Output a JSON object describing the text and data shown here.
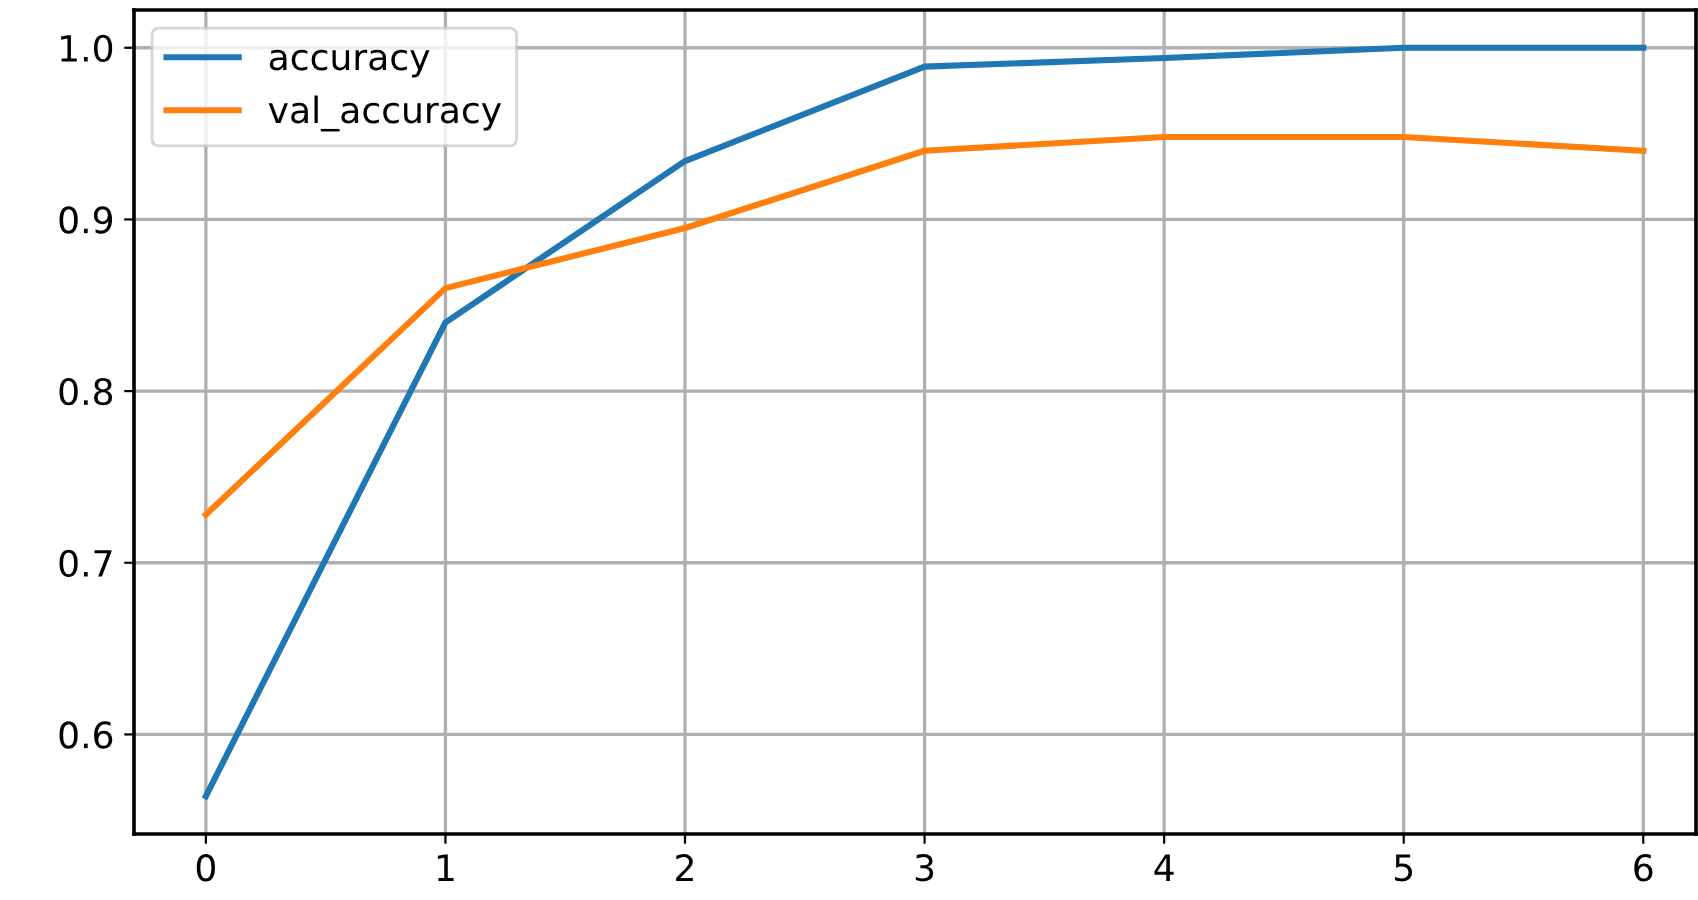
{
  "chart_data": {
    "type": "line",
    "x": [
      0,
      1,
      2,
      3,
      4,
      5,
      6
    ],
    "series": [
      {
        "name": "accuracy",
        "color": "#1f77b4",
        "values": [
          0.564,
          0.84,
          0.934,
          0.989,
          0.994,
          1.0,
          1.0
        ]
      },
      {
        "name": "val_accuracy",
        "color": "#ff7f0e",
        "values": [
          0.728,
          0.86,
          0.895,
          0.94,
          0.948,
          0.948,
          0.94
        ]
      }
    ],
    "xlim": [
      -0.3,
      6.22
    ],
    "ylim": [
      0.542,
      1.022
    ],
    "xticks": [
      0,
      1,
      2,
      3,
      4,
      5,
      6
    ],
    "yticks": [
      {
        "value": 0.6,
        "label": "0.6"
      },
      {
        "value": 0.7,
        "label": "0.7"
      },
      {
        "value": 0.8,
        "label": "0.8"
      },
      {
        "value": 0.9,
        "label": "0.9"
      },
      {
        "value": 1.0,
        "label": "1.0"
      }
    ],
    "grid": true,
    "legend": "top left",
    "marker": "none",
    "line_style": "solid"
  }
}
